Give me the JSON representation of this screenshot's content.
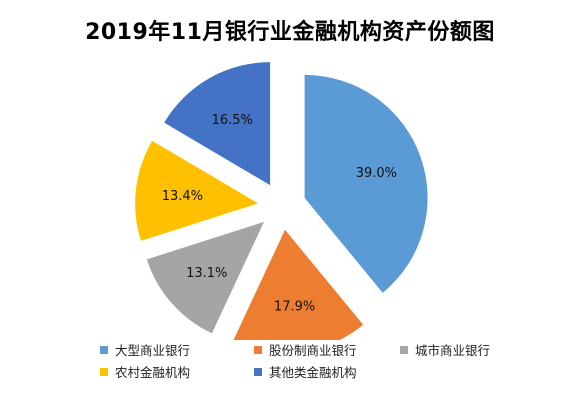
{
  "chart_data": {
    "type": "pie",
    "title": "2019年11月银行业金融机构资产份额图",
    "slices": [
      {
        "label": "大型商业银行",
        "value": 39.0,
        "value_label": "39.0%",
        "color": "#5b9bd5"
      },
      {
        "label": "股份制商业银行",
        "value": 17.9,
        "value_label": "17.9%",
        "color": "#ed7d31"
      },
      {
        "label": "城市商业银行",
        "value": 13.1,
        "value_label": "13.1%",
        "color": "#a5a5a5"
      },
      {
        "label": "农村金融机构",
        "value": 13.4,
        "value_label": "13.4%",
        "color": "#ffc000"
      },
      {
        "label": "其他类金融机构",
        "value": 16.5,
        "value_label": "16.5%",
        "color": "#4472c4"
      }
    ],
    "exploded": true,
    "legend_position": "bottom"
  }
}
